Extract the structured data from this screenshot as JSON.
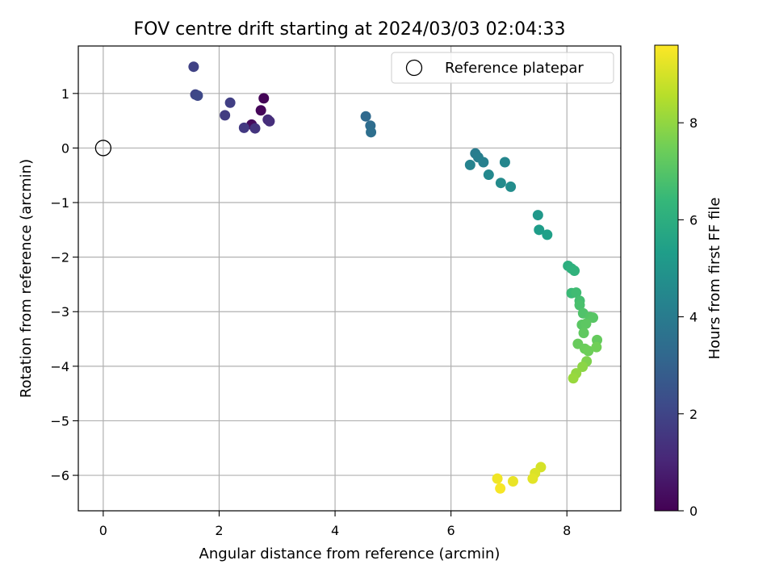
{
  "chart_data": {
    "type": "scatter",
    "title": "FOV centre drift starting at 2024/03/03 02:04:33",
    "xlabel": "Angular distance from reference (arcmin)",
    "ylabel": "Rotation from reference (arcmin)",
    "xlim": [
      -0.43,
      8.93
    ],
    "ylim": [
      -6.65,
      1.87
    ],
    "xticks": [
      "0",
      "2",
      "4",
      "6",
      "8"
    ],
    "yticks": [
      "1",
      "0",
      "−1",
      "−2",
      "−3",
      "−4",
      "−5",
      "−6"
    ],
    "grid": true,
    "legend": {
      "placement": "top-right",
      "entry": "Reference platepar"
    },
    "reference_point": {
      "x": 0,
      "y": 0
    },
    "colorbar": {
      "label": "Hours from first FF file",
      "colormap": "viridis",
      "range": [
        0,
        9.6
      ],
      "ticks": [
        "0",
        "2",
        "4",
        "6",
        "8"
      ],
      "stops": [
        "#440154",
        "#482878",
        "#3e4989",
        "#31688e",
        "#26828e",
        "#1f9e89",
        "#35b779",
        "#6ece58",
        "#b5de2b",
        "#fde725"
      ]
    },
    "points": [
      {
        "x": 2.77,
        "y": 0.91,
        "h": 0.1
      },
      {
        "x": 2.72,
        "y": 0.69,
        "h": 0.15
      },
      {
        "x": 2.56,
        "y": 0.43,
        "h": 0.25
      },
      {
        "x": 2.84,
        "y": 0.52,
        "h": 1.2
      },
      {
        "x": 2.87,
        "y": 0.49,
        "h": 1.25
      },
      {
        "x": 2.62,
        "y": 0.36,
        "h": 1.45
      },
      {
        "x": 2.43,
        "y": 0.37,
        "h": 1.6
      },
      {
        "x": 2.1,
        "y": 0.6,
        "h": 1.7
      },
      {
        "x": 2.19,
        "y": 0.83,
        "h": 1.8
      },
      {
        "x": 1.56,
        "y": 1.49,
        "h": 1.9
      },
      {
        "x": 1.59,
        "y": 0.98,
        "h": 2.0
      },
      {
        "x": 1.63,
        "y": 0.96,
        "h": 2.1
      },
      {
        "x": 4.53,
        "y": 0.58,
        "h": 3.3
      },
      {
        "x": 4.61,
        "y": 0.41,
        "h": 3.4
      },
      {
        "x": 4.62,
        "y": 0.29,
        "h": 3.5
      },
      {
        "x": 6.42,
        "y": -0.1,
        "h": 4.0
      },
      {
        "x": 6.47,
        "y": -0.17,
        "h": 4.1
      },
      {
        "x": 6.56,
        "y": -0.26,
        "h": 4.2
      },
      {
        "x": 6.33,
        "y": -0.31,
        "h": 4.3
      },
      {
        "x": 6.93,
        "y": -0.26,
        "h": 4.4
      },
      {
        "x": 6.65,
        "y": -0.49,
        "h": 4.5
      },
      {
        "x": 6.86,
        "y": -0.64,
        "h": 4.6
      },
      {
        "x": 7.03,
        "y": -0.71,
        "h": 4.7
      },
      {
        "x": 7.5,
        "y": -1.23,
        "h": 5.1
      },
      {
        "x": 7.52,
        "y": -1.5,
        "h": 5.3
      },
      {
        "x": 7.66,
        "y": -1.59,
        "h": 5.4
      },
      {
        "x": 8.02,
        "y": -2.16,
        "h": 6.0
      },
      {
        "x": 8.08,
        "y": -2.21,
        "h": 6.1
      },
      {
        "x": 8.13,
        "y": -2.25,
        "h": 6.2
      },
      {
        "x": 8.08,
        "y": -2.66,
        "h": 6.5
      },
      {
        "x": 8.16,
        "y": -2.65,
        "h": 6.6
      },
      {
        "x": 8.22,
        "y": -2.8,
        "h": 6.7
      },
      {
        "x": 8.22,
        "y": -2.88,
        "h": 6.8
      },
      {
        "x": 8.28,
        "y": -3.03,
        "h": 6.9
      },
      {
        "x": 8.4,
        "y": -3.1,
        "h": 7.0
      },
      {
        "x": 8.45,
        "y": -3.11,
        "h": 7.05
      },
      {
        "x": 8.26,
        "y": -3.24,
        "h": 7.1
      },
      {
        "x": 8.33,
        "y": -3.22,
        "h": 7.15
      },
      {
        "x": 8.29,
        "y": -3.39,
        "h": 7.2
      },
      {
        "x": 8.52,
        "y": -3.52,
        "h": 7.3
      },
      {
        "x": 8.19,
        "y": -3.59,
        "h": 7.35
      },
      {
        "x": 8.31,
        "y": -3.68,
        "h": 7.4
      },
      {
        "x": 8.37,
        "y": -3.72,
        "h": 7.45
      },
      {
        "x": 8.51,
        "y": -3.65,
        "h": 7.5
      },
      {
        "x": 8.34,
        "y": -3.91,
        "h": 7.7
      },
      {
        "x": 8.27,
        "y": -4.01,
        "h": 7.9
      },
      {
        "x": 8.16,
        "y": -4.13,
        "h": 8.0
      },
      {
        "x": 8.11,
        "y": -4.22,
        "h": 8.1
      },
      {
        "x": 7.55,
        "y": -5.85,
        "h": 9.0
      },
      {
        "x": 7.45,
        "y": -5.96,
        "h": 9.1
      },
      {
        "x": 7.41,
        "y": -6.06,
        "h": 9.2
      },
      {
        "x": 7.07,
        "y": -6.11,
        "h": 9.3
      },
      {
        "x": 6.8,
        "y": -6.06,
        "h": 9.4
      },
      {
        "x": 6.85,
        "y": -6.24,
        "h": 9.5
      }
    ]
  }
}
